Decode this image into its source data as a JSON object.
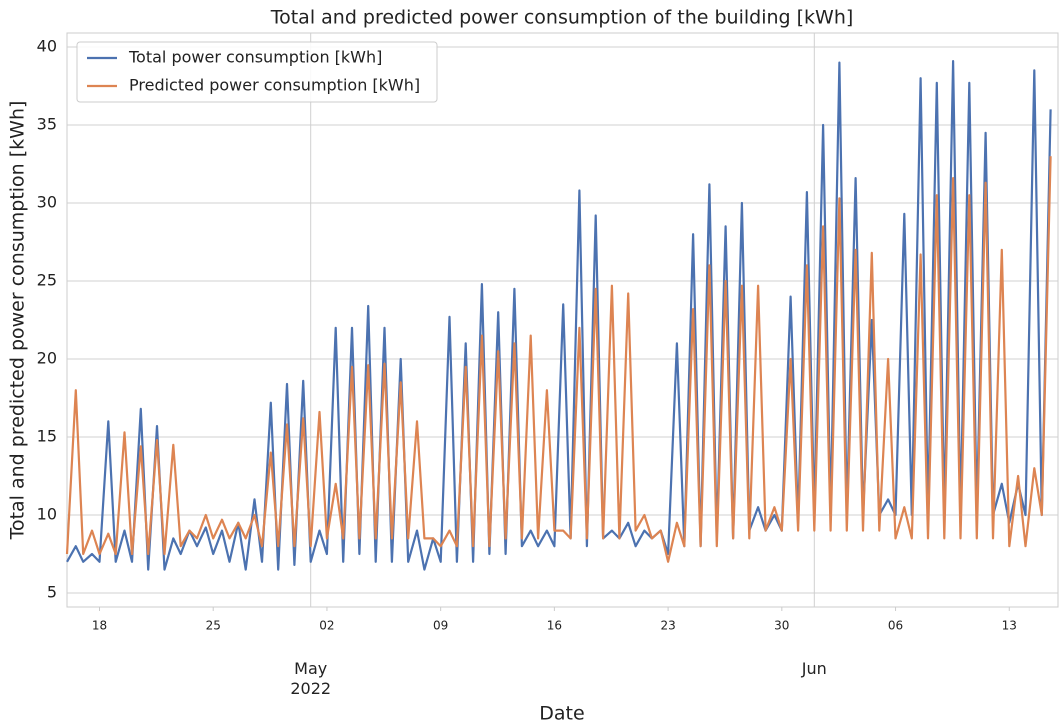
{
  "chart_data": {
    "type": "line",
    "title": "Total and predicted power consumption of the building [kWh]",
    "x_label": "Date",
    "y_label": "Total and predicted power consumption [kWh]",
    "x": [
      "2022-04-16 00:00",
      "2022-04-16 13:00",
      "2022-04-17 00:00",
      "2022-04-17 13:00",
      "2022-04-18 00:00",
      "2022-04-18 13:00",
      "2022-04-19 00:00",
      "2022-04-19 13:00",
      "2022-04-20 00:00",
      "2022-04-20 13:00",
      "2022-04-21 00:00",
      "2022-04-21 13:00",
      "2022-04-22 00:00",
      "2022-04-22 13:00",
      "2022-04-23 00:00",
      "2022-04-23 13:00",
      "2022-04-24 00:00",
      "2022-04-24 13:00",
      "2022-04-25 00:00",
      "2022-04-25 13:00",
      "2022-04-26 00:00",
      "2022-04-26 13:00",
      "2022-04-27 00:00",
      "2022-04-27 13:00",
      "2022-04-28 00:00",
      "2022-04-28 13:00",
      "2022-04-29 00:00",
      "2022-04-29 13:00",
      "2022-04-30 00:00",
      "2022-04-30 13:00",
      "2022-05-01 00:00",
      "2022-05-01 13:00",
      "2022-05-02 00:00",
      "2022-05-02 13:00",
      "2022-05-03 00:00",
      "2022-05-03 13:00",
      "2022-05-04 00:00",
      "2022-05-04 13:00",
      "2022-05-05 00:00",
      "2022-05-05 13:00",
      "2022-05-06 00:00",
      "2022-05-06 13:00",
      "2022-05-07 00:00",
      "2022-05-07 13:00",
      "2022-05-08 00:00",
      "2022-05-08 13:00",
      "2022-05-09 00:00",
      "2022-05-09 13:00",
      "2022-05-10 00:00",
      "2022-05-10 13:00",
      "2022-05-11 00:00",
      "2022-05-11 13:00",
      "2022-05-12 00:00",
      "2022-05-12 13:00",
      "2022-05-13 00:00",
      "2022-05-13 13:00",
      "2022-05-14 00:00",
      "2022-05-14 13:00",
      "2022-05-15 00:00",
      "2022-05-15 13:00",
      "2022-05-16 00:00",
      "2022-05-16 13:00",
      "2022-05-17 00:00",
      "2022-05-17 13:00",
      "2022-05-18 00:00",
      "2022-05-18 13:00",
      "2022-05-19 00:00",
      "2022-05-19 13:00",
      "2022-05-20 00:00",
      "2022-05-20 13:00",
      "2022-05-21 00:00",
      "2022-05-21 13:00",
      "2022-05-22 00:00",
      "2022-05-22 13:00",
      "2022-05-23 00:00",
      "2022-05-23 13:00",
      "2022-05-24 00:00",
      "2022-05-24 13:00",
      "2022-05-25 00:00",
      "2022-05-25 13:00",
      "2022-05-26 00:00",
      "2022-05-26 13:00",
      "2022-05-27 00:00",
      "2022-05-27 13:00",
      "2022-05-28 00:00",
      "2022-05-28 13:00",
      "2022-05-29 00:00",
      "2022-05-29 13:00",
      "2022-05-30 00:00",
      "2022-05-30 13:00",
      "2022-05-31 00:00",
      "2022-05-31 13:00",
      "2022-06-01 00:00",
      "2022-06-01 13:00",
      "2022-06-02 00:00",
      "2022-06-02 13:00",
      "2022-06-03 00:00",
      "2022-06-03 13:00",
      "2022-06-04 00:00",
      "2022-06-04 13:00",
      "2022-06-05 00:00",
      "2022-06-05 13:00",
      "2022-06-06 00:00",
      "2022-06-06 13:00",
      "2022-06-07 00:00",
      "2022-06-07 13:00",
      "2022-06-08 00:00",
      "2022-06-08 13:00",
      "2022-06-09 00:00",
      "2022-06-09 13:00",
      "2022-06-10 00:00",
      "2022-06-10 13:00",
      "2022-06-11 00:00",
      "2022-06-11 13:00",
      "2022-06-12 00:00",
      "2022-06-12 13:00",
      "2022-06-13 00:00",
      "2022-06-13 13:00",
      "2022-06-14 00:00",
      "2022-06-14 13:00",
      "2022-06-15 00:00",
      "2022-06-15 13:00"
    ],
    "series": [
      {
        "name": "Total power consumption [kWh]",
        "color": "#4c72b0",
        "values": [
          7,
          8,
          7,
          7.5,
          7,
          16,
          7,
          9,
          7,
          16.8,
          6.5,
          15.7,
          6.5,
          8.5,
          7.5,
          9,
          8,
          9.2,
          7.5,
          9,
          7,
          9.5,
          6.5,
          11,
          7,
          17.2,
          6.5,
          18.4,
          6.8,
          18.6,
          7,
          9,
          7.5,
          22,
          7,
          22,
          7.5,
          23.4,
          7,
          22,
          7,
          20,
          7,
          9,
          6.5,
          8.5,
          7,
          22.7,
          7,
          21,
          7,
          24.8,
          7.5,
          23,
          7.5,
          24.5,
          8,
          9,
          8,
          9,
          8,
          23.5,
          8.5,
          30.8,
          8,
          29.2,
          8.5,
          9,
          8.5,
          9.5,
          8,
          9,
          8.5,
          9,
          7.5,
          21,
          8,
          28,
          8,
          31.2,
          8.5,
          28.5,
          8.5,
          30,
          9,
          10.5,
          9,
          10,
          9,
          24,
          9.5,
          30.7,
          10,
          35,
          10,
          39,
          10,
          31.6,
          10,
          22.5,
          10,
          11,
          10,
          29.3,
          10,
          38,
          10,
          37.7,
          10,
          39.1,
          10,
          37.7,
          10,
          34.5,
          10,
          12,
          9.5,
          12,
          10,
          38.5,
          10,
          36
        ]
      },
      {
        "name": "Predicted power consumption [kWh]",
        "color": "#dd8452",
        "values": [
          7.5,
          18,
          7.5,
          9,
          7.5,
          8.8,
          7.5,
          15.3,
          7.5,
          14.4,
          7.5,
          14.8,
          7.5,
          14.5,
          8,
          9,
          8.5,
          10,
          8.5,
          9.7,
          8.5,
          9.5,
          8.5,
          10,
          8,
          14,
          8,
          15.8,
          8,
          16.2,
          8,
          16.6,
          8.5,
          12,
          8.5,
          19.5,
          8.5,
          19.6,
          8.5,
          19.7,
          8.5,
          18.5,
          8.5,
          16,
          8.5,
          8.5,
          8,
          9,
          8,
          19.5,
          8,
          21.5,
          8,
          20.5,
          8.5,
          21,
          8.5,
          21.5,
          8.5,
          18,
          9,
          9,
          8.5,
          22,
          8.5,
          24.5,
          8.5,
          24.7,
          8.5,
          24.2,
          9,
          10,
          8.5,
          9,
          7,
          9.5,
          8,
          23.2,
          8,
          26,
          8,
          25,
          8.5,
          24.7,
          8.5,
          24.7,
          9,
          10.5,
          9,
          20,
          9,
          26,
          9,
          28.5,
          9,
          30.3,
          9,
          27,
          9,
          26.8,
          9,
          20,
          8.5,
          10.5,
          8.5,
          26.7,
          8.5,
          30.5,
          8.5,
          31.6,
          8.5,
          30.5,
          8.5,
          31.3,
          8.5,
          27,
          8,
          12.5,
          8,
          13,
          10,
          33
        ]
      }
    ],
    "xlim": [
      "2022-04-16 00:00",
      "2022-06-16 00:00"
    ],
    "xticks": [
      {
        "value": "2022-04-18 00:00",
        "label": "18"
      },
      {
        "value": "2022-04-25 00:00",
        "label": "25"
      },
      {
        "value": "2022-05-02 00:00",
        "label": "02"
      },
      {
        "value": "2022-05-09 00:00",
        "label": "09"
      },
      {
        "value": "2022-05-16 00:00",
        "label": "16"
      },
      {
        "value": "2022-05-23 00:00",
        "label": "23"
      },
      {
        "value": "2022-05-30 00:00",
        "label": "30"
      },
      {
        "value": "2022-06-06 00:00",
        "label": "06"
      },
      {
        "value": "2022-06-13 00:00",
        "label": "13"
      }
    ],
    "xticks_major": [
      {
        "value": "2022-05-01 00:00",
        "label": "May\n2022"
      },
      {
        "value": "2022-06-01 00:00",
        "label": "Jun"
      }
    ],
    "ylim": [
      4.1,
      40.9
    ],
    "yticks": [
      5,
      10,
      15,
      20,
      25,
      30,
      35,
      40
    ],
    "grid": true,
    "legend": "upper left"
  }
}
